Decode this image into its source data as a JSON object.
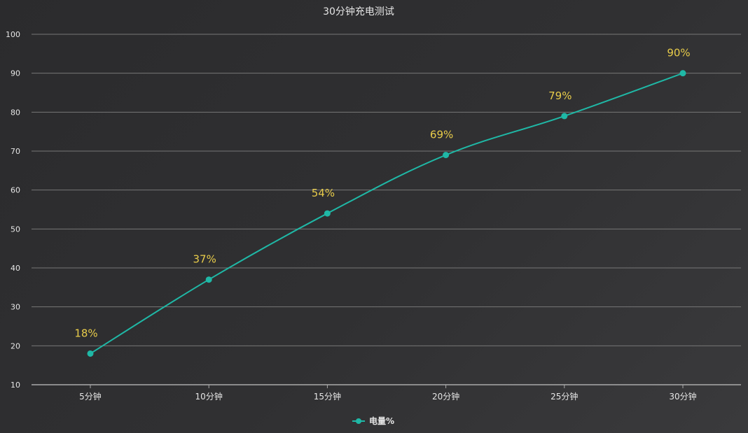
{
  "chart_data": {
    "type": "line",
    "title": "30分钟充电测试",
    "categories": [
      "5分钟",
      "10分钟",
      "15分钟",
      "20分钟",
      "25分钟",
      "30分钟"
    ],
    "series": [
      {
        "name": "电量%",
        "values": [
          18,
          37,
          54,
          69,
          79,
          90
        ],
        "labels": [
          "18%",
          "37%",
          "54%",
          "69%",
          "79%",
          "90%"
        ]
      }
    ],
    "ylim": [
      10,
      100
    ],
    "yticks": [
      10,
      20,
      30,
      40,
      50,
      60,
      70,
      80,
      90,
      100
    ],
    "grid": true,
    "legend_position": "bottom-center",
    "colors": {
      "line": "#1fb8a6",
      "data_label": "#e8cc4a",
      "text": "#e6e6e6",
      "grid": "#777777",
      "axis": "#aaaaaa"
    }
  }
}
